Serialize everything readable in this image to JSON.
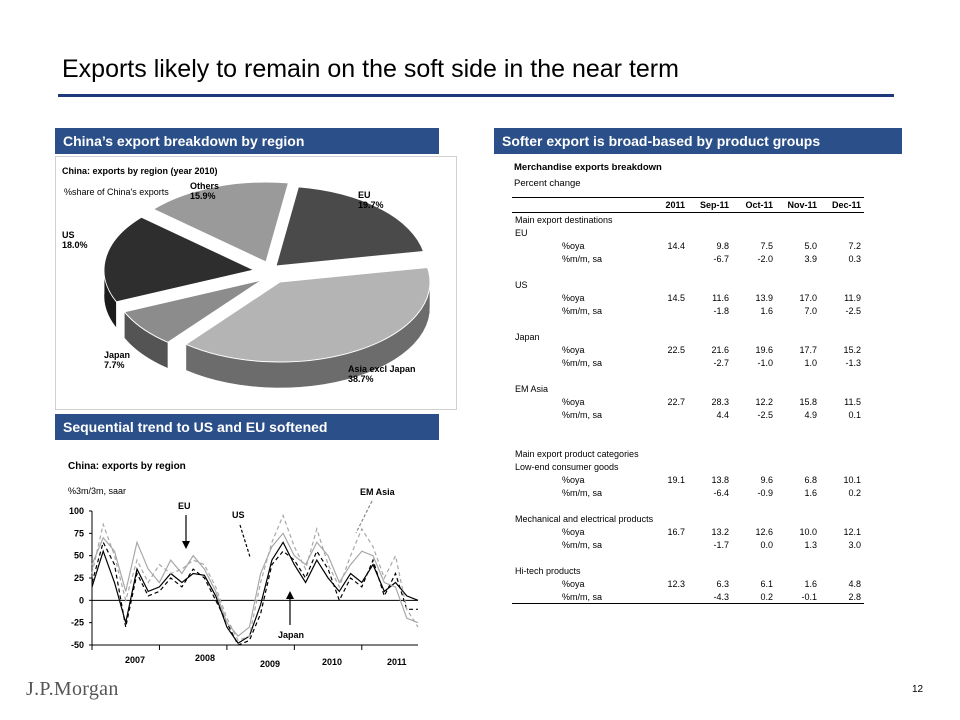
{
  "page": {
    "title": "Exports likely to remain on the soft side in the near term",
    "page_number": "12",
    "logo_text": "J.P.Morgan"
  },
  "left_top": {
    "banner": "China’s export breakdown by region",
    "chart_title": "China: exports by region (year 2010)",
    "subtitle": "%share of China's exports",
    "slices": [
      {
        "name": "EU",
        "value": 19.7,
        "label": "19.7%",
        "color": "#4a4a4a"
      },
      {
        "name": "Asia excl Japan",
        "value": 38.7,
        "label": "38.7%",
        "color": "#b4b4b4"
      },
      {
        "name": "Japan",
        "value": 7.7,
        "label": "7.7%",
        "color": "#8c8c8c"
      },
      {
        "name": "US",
        "value": 18.0,
        "label": "18.0%",
        "color": "#2e2e2e"
      },
      {
        "name": "Others",
        "value": 15.9,
        "label": "15.9%",
        "color": "#9a9a9a"
      }
    ]
  },
  "left_bottom": {
    "banner": "Sequential trend to US and EU softened",
    "chart_title": "China: exports by region",
    "unit": "%3m/3m, saar",
    "y_ticks": [
      "100",
      "75",
      "50",
      "25",
      "0",
      "-25",
      "-50"
    ],
    "x_ticks": [
      "2007",
      "2008",
      "2009",
      "2010",
      "2011"
    ],
    "annotations": [
      "EU",
      "US",
      "EM Asia",
      "Japan"
    ]
  },
  "chart_data": {
    "type": "line",
    "title": "China: exports by region",
    "ylabel": "%3m/3m, saar",
    "ylim": [
      -50,
      100
    ],
    "x": [
      "2007-01",
      "2007-03",
      "2007-05",
      "2007-07",
      "2007-09",
      "2007-11",
      "2008-01",
      "2008-03",
      "2008-05",
      "2008-07",
      "2008-09",
      "2008-11",
      "2009-01",
      "2009-03",
      "2009-05",
      "2009-07",
      "2009-09",
      "2009-11",
      "2010-01",
      "2010-03",
      "2010-05",
      "2010-07",
      "2010-09",
      "2010-11",
      "2011-01",
      "2011-03",
      "2011-05",
      "2011-07",
      "2011-09",
      "2011-11"
    ],
    "series": [
      {
        "name": "EU",
        "color": "#000000",
        "dash": "none",
        "values": [
          15,
          55,
          20,
          -25,
          35,
          10,
          15,
          30,
          20,
          30,
          28,
          5,
          -30,
          -48,
          -40,
          -5,
          45,
          65,
          40,
          20,
          45,
          25,
          10,
          30,
          20,
          40,
          10,
          20,
          5,
          0
        ]
      },
      {
        "name": "US",
        "color": "#000000",
        "dash": "4,3",
        "values": [
          20,
          65,
          40,
          -30,
          30,
          5,
          10,
          25,
          15,
          35,
          25,
          0,
          -25,
          -50,
          -45,
          -15,
          40,
          55,
          45,
          25,
          55,
          35,
          0,
          25,
          15,
          45,
          5,
          30,
          -10,
          -10
        ]
      },
      {
        "name": "EM Asia",
        "color": "#a8a8a8",
        "dash": "4,3",
        "values": [
          30,
          85,
          50,
          0,
          45,
          20,
          40,
          30,
          35,
          45,
          40,
          15,
          -20,
          -45,
          -40,
          20,
          65,
          95,
          60,
          35,
          80,
          40,
          15,
          50,
          80,
          60,
          25,
          50,
          -10,
          -30
        ]
      },
      {
        "name": "Japan",
        "color": "#a8a8a8",
        "dash": "none",
        "values": [
          40,
          70,
          55,
          10,
          65,
          35,
          20,
          45,
          30,
          50,
          35,
          10,
          -25,
          -40,
          -30,
          30,
          60,
          75,
          50,
          40,
          65,
          50,
          20,
          40,
          55,
          50,
          20,
          15,
          -20,
          -25
        ]
      }
    ]
  },
  "table": {
    "banner": "Softer export is broad-based by product groups",
    "title": "Merchandise exports breakdown",
    "subtitle": "Percent change",
    "columns": [
      "2011",
      "Sep-11",
      "Oct-11",
      "Nov-11",
      "Dec-11"
    ],
    "rows": [
      {
        "type": "section",
        "label": "Main export destinations"
      },
      {
        "type": "group",
        "label": "EU"
      },
      {
        "type": "data",
        "label": "%oya",
        "values": [
          "14.4",
          "9.8",
          "7.5",
          "5.0",
          "7.2"
        ]
      },
      {
        "type": "data",
        "label": "%m/m, sa",
        "values": [
          "",
          "-6.7",
          "-2.0",
          "3.9",
          "0.3"
        ]
      },
      {
        "type": "spacer"
      },
      {
        "type": "group",
        "label": "US"
      },
      {
        "type": "data",
        "label": "%oya",
        "values": [
          "14.5",
          "11.6",
          "13.9",
          "17.0",
          "11.9"
        ]
      },
      {
        "type": "data",
        "label": "%m/m, sa",
        "values": [
          "",
          "-1.8",
          "1.6",
          "7.0",
          "-2.5"
        ]
      },
      {
        "type": "spacer"
      },
      {
        "type": "group",
        "label": "Japan"
      },
      {
        "type": "data",
        "label": "%oya",
        "values": [
          "22.5",
          "21.6",
          "19.6",
          "17.7",
          "15.2"
        ]
      },
      {
        "type": "data",
        "label": "%m/m, sa",
        "values": [
          "",
          "-2.7",
          "-1.0",
          "1.0",
          "-1.3"
        ]
      },
      {
        "type": "spacer"
      },
      {
        "type": "group",
        "label": "EM Asia"
      },
      {
        "type": "data",
        "label": "%oya",
        "values": [
          "22.7",
          "28.3",
          "12.2",
          "15.8",
          "11.5"
        ]
      },
      {
        "type": "data",
        "label": "%m/m, sa",
        "values": [
          "",
          "4.4",
          "-2.5",
          "4.9",
          "0.1"
        ]
      },
      {
        "type": "spacer"
      },
      {
        "type": "spacer"
      },
      {
        "type": "section",
        "label": "Main export product categories"
      },
      {
        "type": "group",
        "label": "Low-end consumer goods"
      },
      {
        "type": "data",
        "label": "%oya",
        "values": [
          "19.1",
          "13.8",
          "9.6",
          "6.8",
          "10.1"
        ]
      },
      {
        "type": "data",
        "label": "%m/m, sa",
        "values": [
          "",
          "-6.4",
          "-0.9",
          "1.6",
          "0.2"
        ]
      },
      {
        "type": "spacer"
      },
      {
        "type": "group",
        "label": "Mechanical and electrical products"
      },
      {
        "type": "data",
        "label": "%oya",
        "values": [
          "16.7",
          "13.2",
          "12.6",
          "10.0",
          "12.1"
        ]
      },
      {
        "type": "data",
        "label": "%m/m, sa",
        "values": [
          "",
          "-1.7",
          "0.0",
          "1.3",
          "3.0"
        ]
      },
      {
        "type": "spacer"
      },
      {
        "type": "group",
        "label": "Hi-tech products"
      },
      {
        "type": "data",
        "label": "%oya",
        "values": [
          "12.3",
          "6.3",
          "6.1",
          "1.6",
          "4.8"
        ]
      },
      {
        "type": "data",
        "label": "%m/m, sa",
        "values": [
          "",
          "-4.3",
          "0.2",
          "-0.1",
          "2.8"
        ]
      }
    ]
  }
}
